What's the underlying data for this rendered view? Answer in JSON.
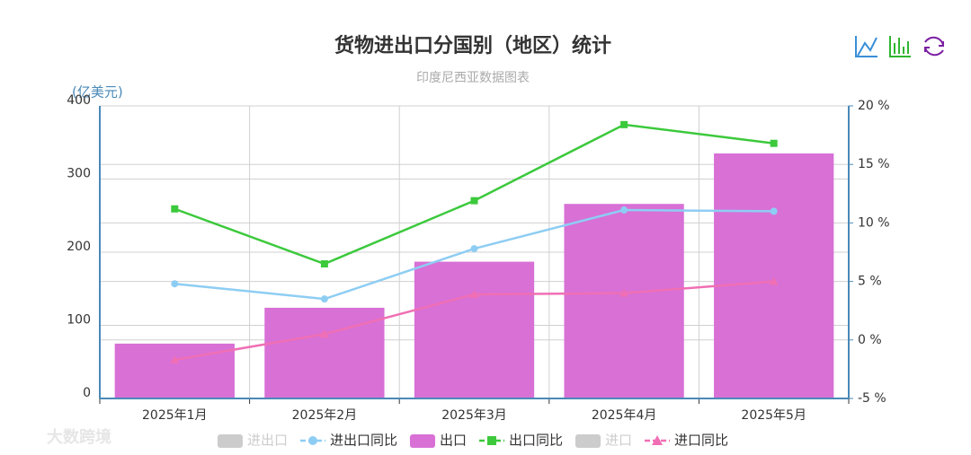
{
  "chart_data": {
    "type": "bar_line",
    "title": "货物进出口分国别（地区）统计",
    "subtitle": "印度尼西亚数据图表",
    "y_label": "(亿美元)",
    "watermark": "大数跨境",
    "categories": [
      "2025年1月",
      "2025年2月",
      "2025年3月",
      "2025年4月",
      "2025年5月"
    ],
    "series": [
      {
        "name": "进出口",
        "type": "bar",
        "color": "#cccccc",
        "hidden": true,
        "values": [
          null,
          null,
          null,
          null,
          null
        ]
      },
      {
        "name": "进出口同比",
        "type": "line",
        "axis": "y2",
        "symbol": "circle",
        "color": "#8ecdf3",
        "values": [
          4.8,
          3.5,
          7.8,
          11.1,
          11.0
        ]
      },
      {
        "name": "出口",
        "type": "bar",
        "color": "#d870d6",
        "values": [
          75,
          124,
          187,
          266,
          335
        ]
      },
      {
        "name": "出口同比",
        "type": "line",
        "axis": "y2",
        "symbol": "square",
        "color": "#3cc93c",
        "values": [
          11.2,
          6.5,
          11.9,
          18.4,
          16.8
        ]
      },
      {
        "name": "进口",
        "type": "bar",
        "color": "#cccccc",
        "hidden": true,
        "values": [
          null,
          null,
          null,
          null,
          null
        ]
      },
      {
        "name": "进口同比",
        "type": "line",
        "axis": "y2",
        "symbol": "triangle",
        "color": "#f06fb4",
        "values": [
          -1.7,
          0.5,
          3.9,
          4.0,
          5.0
        ]
      }
    ],
    "ylim": [
      0,
      400
    ],
    "yticks": [
      0,
      100,
      200,
      300,
      400
    ],
    "y2lim": [
      -5,
      20
    ],
    "y2ticks": [
      {
        "value": -5,
        "label": "-5 %"
      },
      {
        "value": 0,
        "label": "0 %"
      },
      {
        "value": 5,
        "label": "5 %"
      },
      {
        "value": 10,
        "label": "10 %"
      },
      {
        "value": 15,
        "label": "15 %"
      },
      {
        "value": 20,
        "label": "20 %"
      }
    ],
    "grid": true
  }
}
